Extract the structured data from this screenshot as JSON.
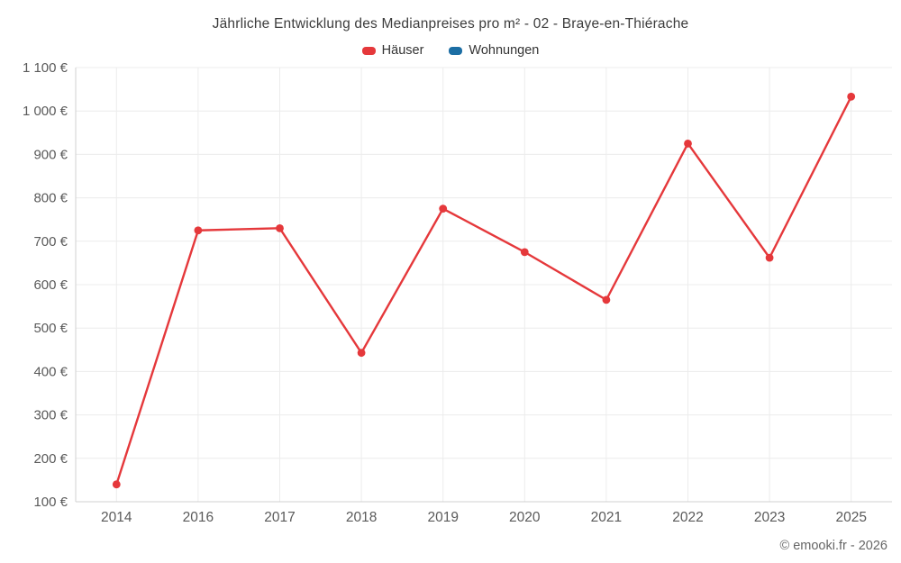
{
  "title": "Jährliche Entwicklung des Medianpreises pro m² - 02 - Braye-en-Thiérache",
  "footer": {
    "copyright": "© emooki.fr - 2026"
  },
  "colors": {
    "hauser": "#e5383b",
    "wohnungen": "#1c6ea4",
    "grid": "#ececec",
    "axis": "#d0d0d0",
    "tick_text": "#5a5a5a"
  },
  "chart_data": {
    "type": "line",
    "title": "Jährliche Entwicklung des Medianpreises pro m² - 02 - Braye-en-Thiérache",
    "categories": [
      "2014",
      "2016",
      "2017",
      "2018",
      "2019",
      "2020",
      "2021",
      "2022",
      "2023",
      "2025"
    ],
    "series": [
      {
        "name": "Häuser",
        "color": "#e5383b",
        "values": [
          140,
          725,
          730,
          443,
          775,
          675,
          565,
          925,
          662,
          1033
        ]
      },
      {
        "name": "Wohnungen",
        "color": "#1c6ea4",
        "values": []
      }
    ],
    "xlabel": "",
    "ylabel": "",
    "ylim": [
      100,
      1100
    ],
    "yticks": [
      100,
      200,
      300,
      400,
      500,
      600,
      700,
      800,
      900,
      1000,
      1100
    ],
    "ytick_labels": [
      "100 €",
      "200 €",
      "300 €",
      "400 €",
      "500 €",
      "600 €",
      "700 €",
      "800 €",
      "900 €",
      "1 000 €",
      "1 100 €"
    ],
    "grid": true,
    "legend_position": "top"
  }
}
